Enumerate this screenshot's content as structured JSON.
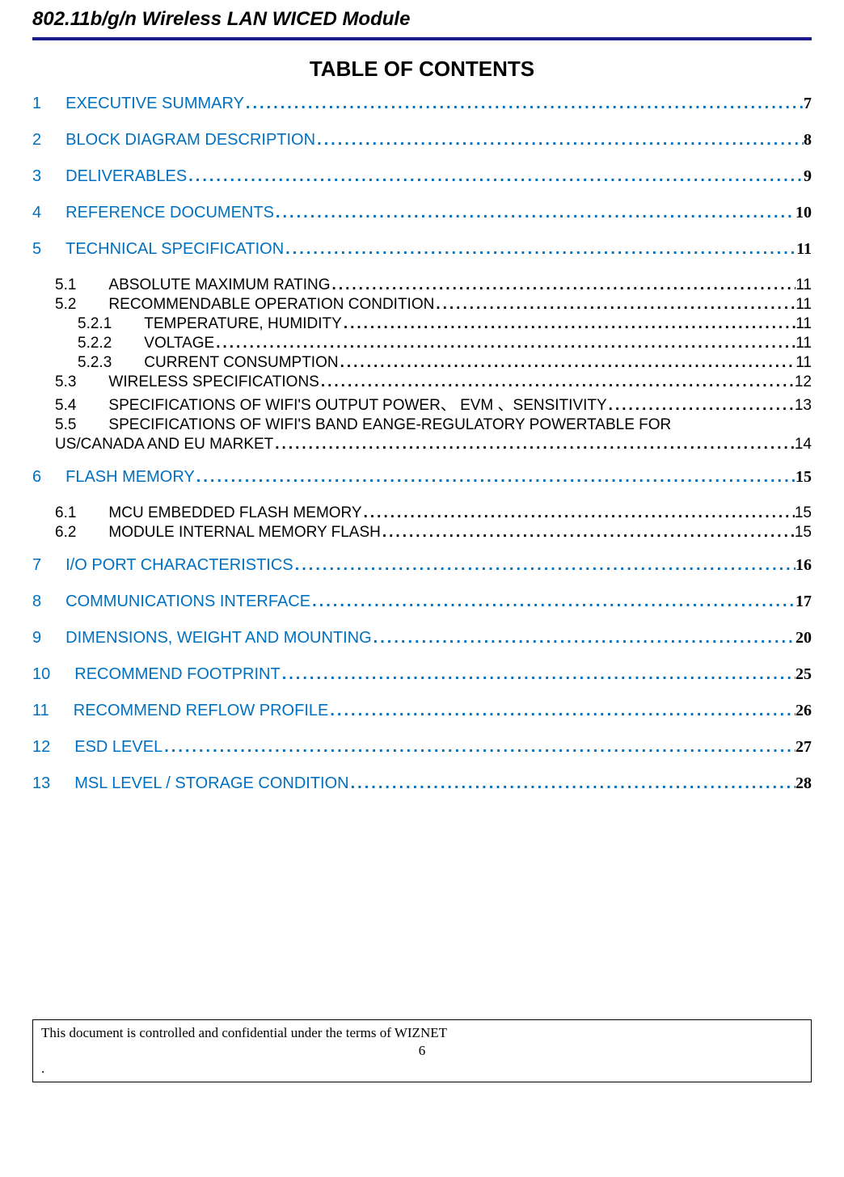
{
  "header": {
    "title": "802.11b/g/n Wireless LAN WICED Module"
  },
  "toc": {
    "heading": "TABLE OF CONTENTS",
    "items": [
      {
        "level": 1,
        "num": "1",
        "title": "EXECUTIVE SUMMARY",
        "page": "7"
      },
      {
        "level": 1,
        "num": "2",
        "title": "BLOCK DIAGRAM DESCRIPTION",
        "page": "8"
      },
      {
        "level": 1,
        "num": "3",
        "title": "DELIVERABLES",
        "page": "9"
      },
      {
        "level": 1,
        "num": "4",
        "title": "REFERENCE DOCUMENTS",
        "page": "10"
      },
      {
        "level": 1,
        "num": "5",
        "title": "TECHNICAL SPECIFICATION",
        "page": "11"
      },
      {
        "level": 2,
        "num": "5.1",
        "title": "ABSOLUTE MAXIMUM RATING",
        "page": "11"
      },
      {
        "level": 2,
        "num": "5.2",
        "title": "RECOMMENDABLE OPERATION CONDITION",
        "page": "11"
      },
      {
        "level": 3,
        "num": "5.2.1",
        "title": "TEMPERATURE, HUMIDITY",
        "page": "11"
      },
      {
        "level": 3,
        "num": "5.2.2",
        "title": "VOLTAGE",
        "page": "11"
      },
      {
        "level": 3,
        "num": "5.2.3",
        "title": "CURRENT CONSUMPTION",
        "page": "11"
      },
      {
        "level": 2,
        "num": "5.3",
        "title": "WIRELESS SPECIFICATIONS",
        "page": "12"
      },
      {
        "level": 2,
        "num": "5.4",
        "title": "SPECIFICATIONS OF WIFI'S OUTPUT POWER、 EVM 、SENSITIVITY",
        "page": "13"
      },
      {
        "level": 2,
        "num": "5.5",
        "title": "SPECIFICATIONS OF WIFI'S BAND EANGE-REGULATORY  POWERTABLE FOR",
        "page": ""
      },
      {
        "level": 2,
        "num": "",
        "title": "US/CANADA AND EU MARKET",
        "page": "14",
        "continuation": true
      },
      {
        "level": 1,
        "num": "6",
        "title": "FLASH MEMORY",
        "page": "15"
      },
      {
        "level": 2,
        "num": "6.1",
        "title": "MCU EMBEDDED FLASH MEMORY",
        "page": "15"
      },
      {
        "level": 2,
        "num": "6.2",
        "title": "MODULE INTERNAL MEMORY FLASH",
        "page": "15"
      },
      {
        "level": 1,
        "num": "7",
        "title": "I/O PORT CHARACTERISTICS",
        "page": "16"
      },
      {
        "level": 1,
        "num": "8",
        "title": "COMMUNICATIONS INTERFACE",
        "page": "17"
      },
      {
        "level": 1,
        "num": "9",
        "title": "DIMENSIONS, WEIGHT AND MOUNTING",
        "page": "20"
      },
      {
        "level": 1,
        "num": "10",
        "title": "RECOMMEND FOOTPRINT",
        "page": "25"
      },
      {
        "level": 1,
        "num": "11",
        "title": "RECOMMEND REFLOW PROFILE",
        "page": "26"
      },
      {
        "level": 1,
        "num": "12",
        "title": "ESD LEVEL",
        "page": "27"
      },
      {
        "level": 1,
        "num": "13",
        "title": "MSL LEVEL / STORAGE CONDITION",
        "page": "28"
      }
    ]
  },
  "footer": {
    "text": "This document is controlled and confidential under the terms of WIZNET",
    "pageNum": "6",
    "dot": "."
  }
}
